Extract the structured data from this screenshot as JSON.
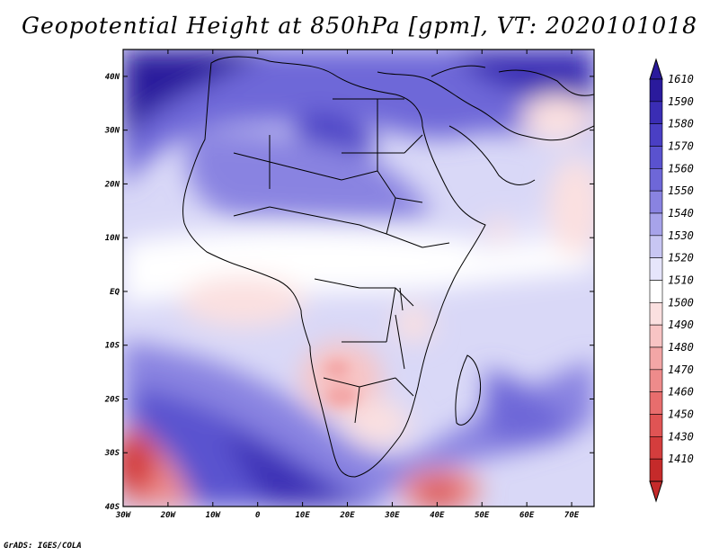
{
  "title": "Geopotential Height at 850hPa [gpm], VT: 2020101018",
  "credit": "GrADS: IGES/COLA",
  "map": {
    "lon_labels": [
      "30W",
      "20W",
      "10W",
      "0",
      "10E",
      "20E",
      "30E",
      "40E",
      "50E",
      "60E",
      "70E"
    ],
    "lat_labels": [
      "40N",
      "30N",
      "20N",
      "10N",
      "EQ",
      "10S",
      "20S",
      "30S",
      "40S"
    ]
  },
  "colorbar": {
    "levels": [
      "1610",
      "1590",
      "1580",
      "1570",
      "1560",
      "1550",
      "1540",
      "1530",
      "1520",
      "1510",
      "1500",
      "1490",
      "1480",
      "1470",
      "1460",
      "1450",
      "1430",
      "1410"
    ],
    "colors": [
      "#2a1a9c",
      "#3a2db4",
      "#4a3fc4",
      "#5a52cf",
      "#6e67d8",
      "#8983e1",
      "#a7a3ea",
      "#c8c6f3",
      "#e6e5fb",
      "#ffffff",
      "#fbe0e0",
      "#f8c4c4",
      "#f3a6a6",
      "#ee8b8b",
      "#e86d6d",
      "#e05454",
      "#d43d3d",
      "#c52a2a"
    ]
  },
  "colors": {
    "ocean_blue": "#c8c6f3",
    "land_outline": "#000000"
  }
}
